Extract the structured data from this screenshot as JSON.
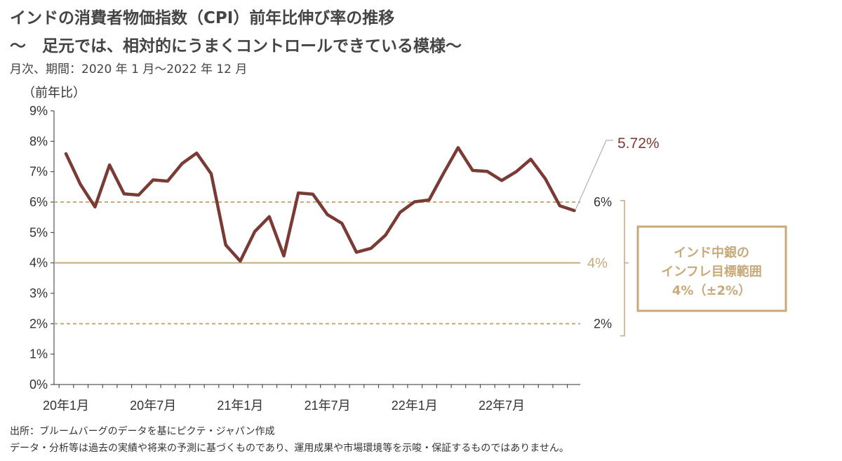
{
  "title": "インドの消費者物価指数（CPI）前年比伸び率の推移",
  "subtitle": "～　足元では、相対的にうまくコントロールできている模様～",
  "period": "月次、期間：2020 年 1 月～2022 年 12 月",
  "notes": {
    "source": "出所：ブルームバーグのデータを基にピクテ・ジャパン作成",
    "disclaimer": "データ・分析等は過去の実績や将来の予測に基づくものであり、運用成果や市場環境等を示唆・保証するものではありません。"
  },
  "colors": {
    "series": "#7b3b35",
    "target": "#c8a97a",
    "axis": "#333333",
    "box_text": "#c8a97a"
  },
  "chart_data": {
    "type": "line",
    "ylabel": "（前年比）",
    "ylim": [
      0,
      9
    ],
    "y_ticks": [
      "0%",
      "1%",
      "2%",
      "3%",
      "4%",
      "5%",
      "6%",
      "7%",
      "8%",
      "9%"
    ],
    "x_tick_labels": [
      "20年1月",
      "20年7月",
      "21年1月",
      "21年7月",
      "22年1月",
      "22年7月"
    ],
    "grid": false,
    "series": [
      {
        "values": [
          7.59,
          6.58,
          5.84,
          7.22,
          6.27,
          6.23,
          6.73,
          6.69,
          7.27,
          7.61,
          6.93,
          4.59,
          4.06,
          5.03,
          5.52,
          4.23,
          6.3,
          6.26,
          5.59,
          5.3,
          4.35,
          4.48,
          4.91,
          5.66,
          6.01,
          6.07,
          6.95,
          7.79,
          7.04,
          7.01,
          6.71,
          7.0,
          7.41,
          6.77,
          5.88,
          5.72
        ]
      }
    ],
    "annotations": {
      "last_value_label": "5.72%",
      "target_center_label": "4%",
      "target_upper_label": "6%",
      "target_lower_label": "2%",
      "target_center": 4,
      "target_upper": 6,
      "target_lower": 2,
      "box_lines": [
        "インド中銀の",
        "インフレ目標範囲",
        "4%（±2%）"
      ]
    }
  }
}
